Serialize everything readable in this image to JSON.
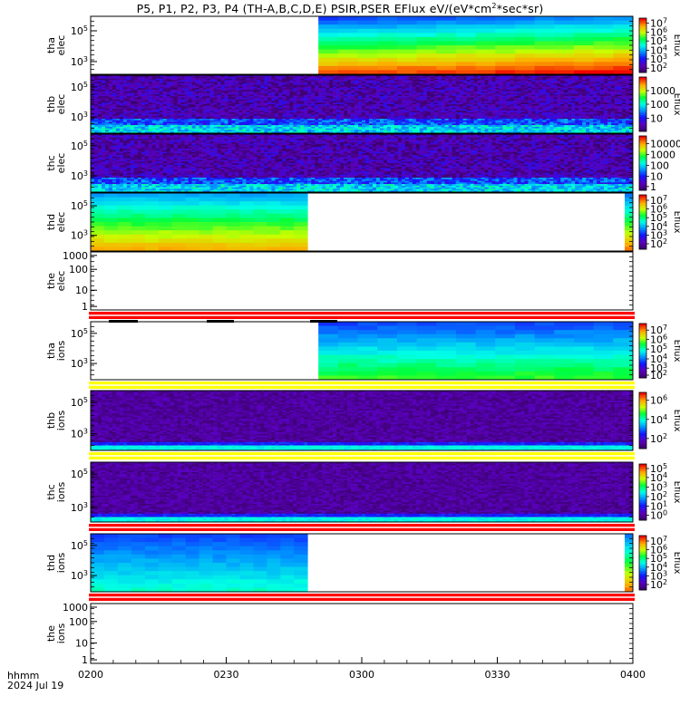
{
  "title": {
    "prefix": "P5, P1, P2, P3, P4 (TH-A,B,C,D,E) PSIR,PSER EFlux eV/(eV*cm",
    "sup": "2",
    "suffix": "*sec*sr)"
  },
  "footer": {
    "row1": "hhmm",
    "row2": "2024 Jul 19"
  },
  "chart_data": {
    "type": "heatmap",
    "x_ticks": [
      "0200",
      "0230",
      "0300",
      "0330",
      "0400"
    ],
    "panels": [
      {
        "id": "tha-elec",
        "ylabel": [
          "tha",
          "elec"
        ],
        "kind": "tha",
        "data_start": 0.42,
        "data_end": 1.0,
        "y_ticks": [
          {
            "base": "10",
            "exp": "5",
            "f": 0.25
          },
          {
            "base": "10",
            "exp": "3",
            "f": 0.78
          }
        ],
        "cb_label": "Eflux",
        "cb_ticks": [
          {
            "base": "10",
            "exp": "7",
            "f": 0.09
          },
          {
            "base": "10",
            "exp": "6",
            "f": 0.26
          },
          {
            "base": "10",
            "exp": "5",
            "f": 0.42
          },
          {
            "base": "10",
            "exp": "4",
            "f": 0.59
          },
          {
            "base": "10",
            "exp": "3",
            "f": 0.75
          },
          {
            "base": "10",
            "exp": "2",
            "f": 0.92
          }
        ]
      },
      {
        "id": "thb-elec",
        "ylabel": [
          "thb",
          "elec"
        ],
        "kind": "noise",
        "y_ticks": [
          {
            "base": "10",
            "exp": "5",
            "f": 0.2
          },
          {
            "base": "10",
            "exp": "3",
            "f": 0.72
          }
        ],
        "cb_label": "Eflux",
        "cb_ticks": [
          {
            "base": "1000",
            "exp": "",
            "f": 0.25
          },
          {
            "base": "100",
            "exp": "",
            "f": 0.5
          },
          {
            "base": "10",
            "exp": "",
            "f": 0.76
          }
        ]
      },
      {
        "id": "thc-elec",
        "ylabel": [
          "thc",
          "elec"
        ],
        "kind": "noise",
        "y_ticks": [
          {
            "base": "10",
            "exp": "5",
            "f": 0.2
          },
          {
            "base": "10",
            "exp": "3",
            "f": 0.72
          }
        ],
        "cb_label": "",
        "cb_ticks": [
          {
            "base": "10000",
            "exp": "",
            "f": 0.14
          },
          {
            "base": "1000",
            "exp": "",
            "f": 0.34
          },
          {
            "base": "100",
            "exp": "",
            "f": 0.54
          },
          {
            "base": "10",
            "exp": "",
            "f": 0.74
          },
          {
            "base": "1",
            "exp": "",
            "f": 0.93
          }
        ]
      },
      {
        "id": "thd-elec",
        "ylabel": [
          "thd",
          "elec"
        ],
        "kind": "thd",
        "data_start": 0.0,
        "data_end": 0.4,
        "edge": 0.985,
        "y_ticks": [
          {
            "base": "10",
            "exp": "5",
            "f": 0.22
          },
          {
            "base": "10",
            "exp": "3",
            "f": 0.73
          }
        ],
        "cb_label": "Eflux",
        "cb_ticks": [
          {
            "base": "10",
            "exp": "7",
            "f": 0.1
          },
          {
            "base": "10",
            "exp": "6",
            "f": 0.26
          },
          {
            "base": "10",
            "exp": "5",
            "f": 0.42
          },
          {
            "base": "10",
            "exp": "4",
            "f": 0.58
          },
          {
            "base": "10",
            "exp": "3",
            "f": 0.74
          },
          {
            "base": "10",
            "exp": "2",
            "f": 0.9
          }
        ]
      },
      {
        "id": "the-elec",
        "ylabel": [
          "the",
          "elec"
        ],
        "kind": "empty",
        "y_ticks": [
          {
            "base": "1000",
            "exp": "",
            "f": 0.06
          },
          {
            "base": "100",
            "exp": "",
            "f": 0.3
          },
          {
            "base": "10",
            "exp": "",
            "f": 0.66
          },
          {
            "base": "1",
            "exp": "",
            "f": 0.94
          }
        ]
      },
      {
        "id": "tha-ions",
        "ylabel": [
          "tha",
          "ions"
        ],
        "kind": "tha_ions",
        "data_start": 0.42,
        "data_end": 1.0,
        "y_ticks": [
          {
            "base": "10",
            "exp": "5",
            "f": 0.2
          },
          {
            "base": "10",
            "exp": "3",
            "f": 0.72
          }
        ],
        "cb_label": "Eflux",
        "cb_ticks": [
          {
            "base": "10",
            "exp": "7",
            "f": 0.12
          },
          {
            "base": "10",
            "exp": "6",
            "f": 0.29
          },
          {
            "base": "10",
            "exp": "5",
            "f": 0.47
          },
          {
            "base": "10",
            "exp": "4",
            "f": 0.65
          },
          {
            "base": "10",
            "exp": "3",
            "f": 0.82
          },
          {
            "base": "10",
            "exp": "2",
            "f": 0.95
          }
        ]
      },
      {
        "id": "thb-ions",
        "ylabel": [
          "thb",
          "ions"
        ],
        "kind": "noise_ions",
        "y_ticks": [
          {
            "base": "10",
            "exp": "5",
            "f": 0.2
          },
          {
            "base": "10",
            "exp": "3",
            "f": 0.72
          }
        ],
        "cb_label": "Eflux",
        "cb_ticks": [
          {
            "base": "10",
            "exp": "6",
            "f": 0.14
          },
          {
            "base": "10",
            "exp": "4",
            "f": 0.48
          },
          {
            "base": "10",
            "exp": "2",
            "f": 0.82
          }
        ]
      },
      {
        "id": "thc-ions",
        "ylabel": [
          "thc",
          "ions"
        ],
        "kind": "noise_ions",
        "y_ticks": [
          {
            "base": "10",
            "exp": "5",
            "f": 0.2
          },
          {
            "base": "10",
            "exp": "3",
            "f": 0.76
          }
        ],
        "cb_label": "Eflux",
        "cb_ticks": [
          {
            "base": "10",
            "exp": "5",
            "f": 0.08
          },
          {
            "base": "10",
            "exp": "4",
            "f": 0.24
          },
          {
            "base": "10",
            "exp": "3",
            "f": 0.41
          },
          {
            "base": "10",
            "exp": "2",
            "f": 0.58
          },
          {
            "base": "10",
            "exp": "1",
            "f": 0.75
          },
          {
            "base": "10",
            "exp": "0",
            "f": 0.91
          }
        ]
      },
      {
        "id": "thd-ions",
        "ylabel": [
          "thd",
          "ions"
        ],
        "kind": "thd_ions",
        "data_start": 0.0,
        "data_end": 0.4,
        "edge": 0.985,
        "y_ticks": [
          {
            "base": "10",
            "exp": "5",
            "f": 0.2
          },
          {
            "base": "10",
            "exp": "3",
            "f": 0.72
          }
        ],
        "cb_label": "Eflux",
        "cb_ticks": [
          {
            "base": "10",
            "exp": "7",
            "f": 0.1
          },
          {
            "base": "10",
            "exp": "6",
            "f": 0.26
          },
          {
            "base": "10",
            "exp": "5",
            "f": 0.42
          },
          {
            "base": "10",
            "exp": "4",
            "f": 0.58
          },
          {
            "base": "10",
            "exp": "3",
            "f": 0.74
          },
          {
            "base": "10",
            "exp": "2",
            "f": 0.9
          }
        ]
      },
      {
        "id": "the-ions",
        "ylabel": [
          "the",
          "ions"
        ],
        "kind": "empty",
        "y_ticks": [
          {
            "base": "1000",
            "exp": "",
            "f": 0.06
          },
          {
            "base": "100",
            "exp": "",
            "f": 0.3
          },
          {
            "base": "10",
            "exp": "",
            "f": 0.66
          },
          {
            "base": "1",
            "exp": "",
            "f": 0.94
          }
        ]
      }
    ],
    "flags": [
      {
        "color": "#ff0000",
        "after": "the-elec"
      },
      {
        "color": "#ffff00",
        "after": "tha-ions"
      },
      {
        "color": "#ffff00",
        "after": "thb-ions"
      },
      {
        "color": "#ff0000",
        "after": "thc-ions"
      },
      {
        "color": "#ff0000",
        "after": "thd-ions"
      }
    ]
  }
}
